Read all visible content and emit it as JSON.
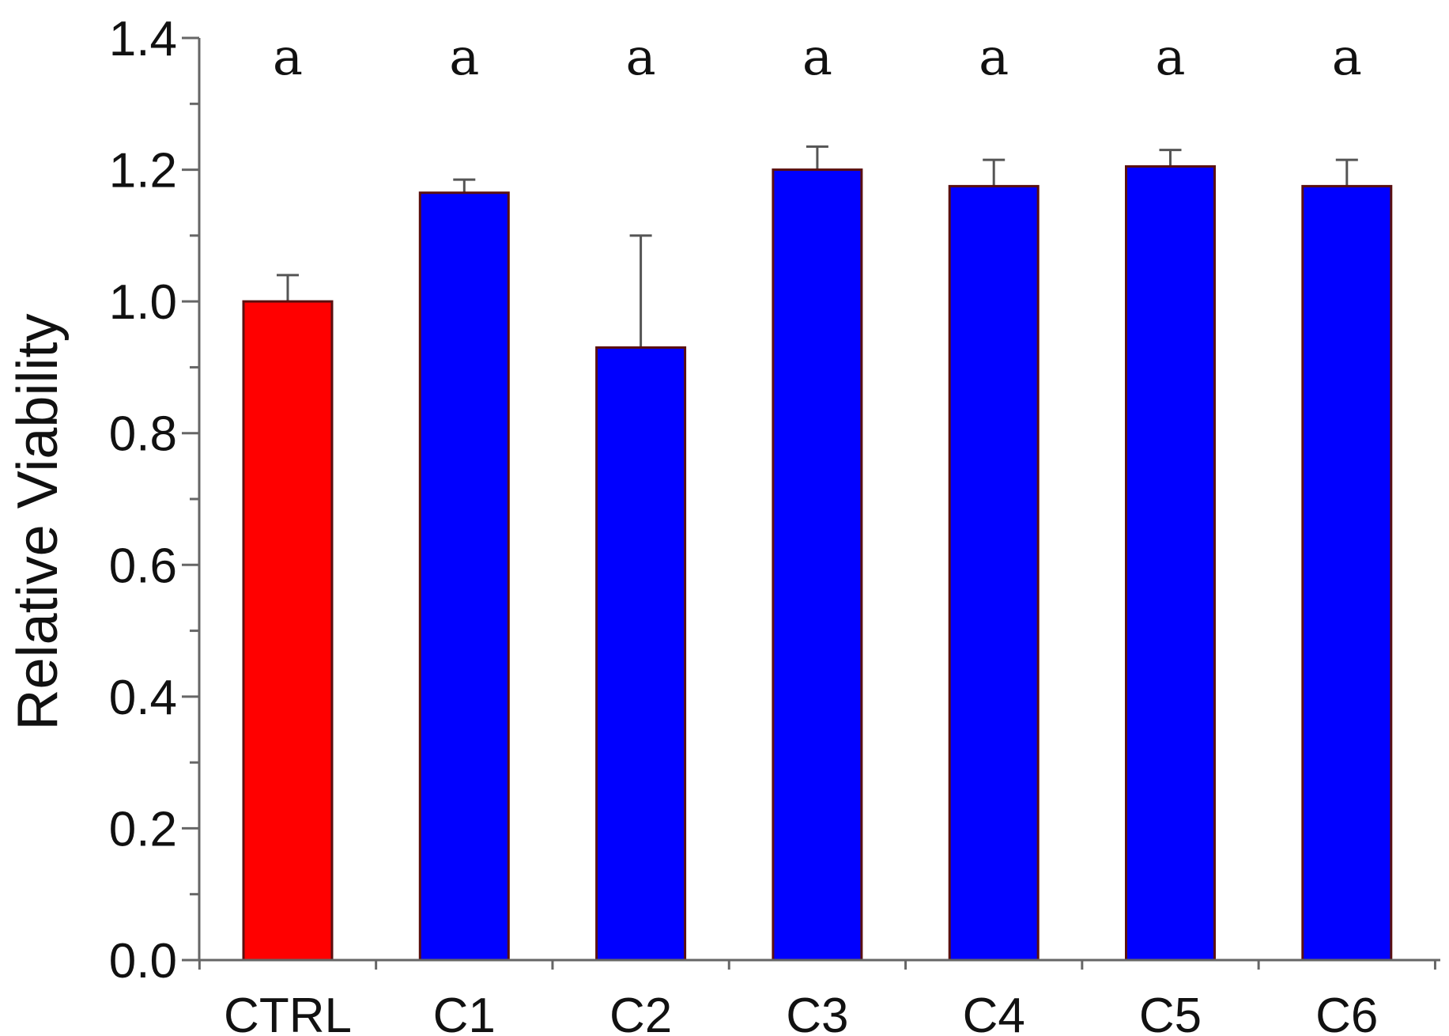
{
  "chart_data": {
    "type": "bar",
    "categories": [
      "CTRL",
      "C1",
      "C2",
      "C3",
      "C4",
      "C5",
      "C6"
    ],
    "values": [
      1.0,
      1.165,
      0.93,
      1.2,
      1.175,
      1.205,
      1.175
    ],
    "errors": [
      0.04,
      0.02,
      0.17,
      0.035,
      0.04,
      0.025,
      0.04
    ],
    "significance_labels": [
      "a",
      "a",
      "a",
      "a",
      "a",
      "a",
      "a"
    ],
    "bar_colors": [
      "#ff0000",
      "#0000ff",
      "#0000ff",
      "#0000ff",
      "#0000ff",
      "#0000ff",
      "#0000ff"
    ],
    "title": "",
    "xlabel": "",
    "ylabel": "Relative Viability",
    "ylim": [
      0.0,
      1.4
    ],
    "yticks": [
      "0.0",
      "0.2",
      "0.4",
      "0.6",
      "0.8",
      "1.0",
      "1.2",
      "1.4"
    ],
    "grid": false,
    "legend": "none"
  }
}
